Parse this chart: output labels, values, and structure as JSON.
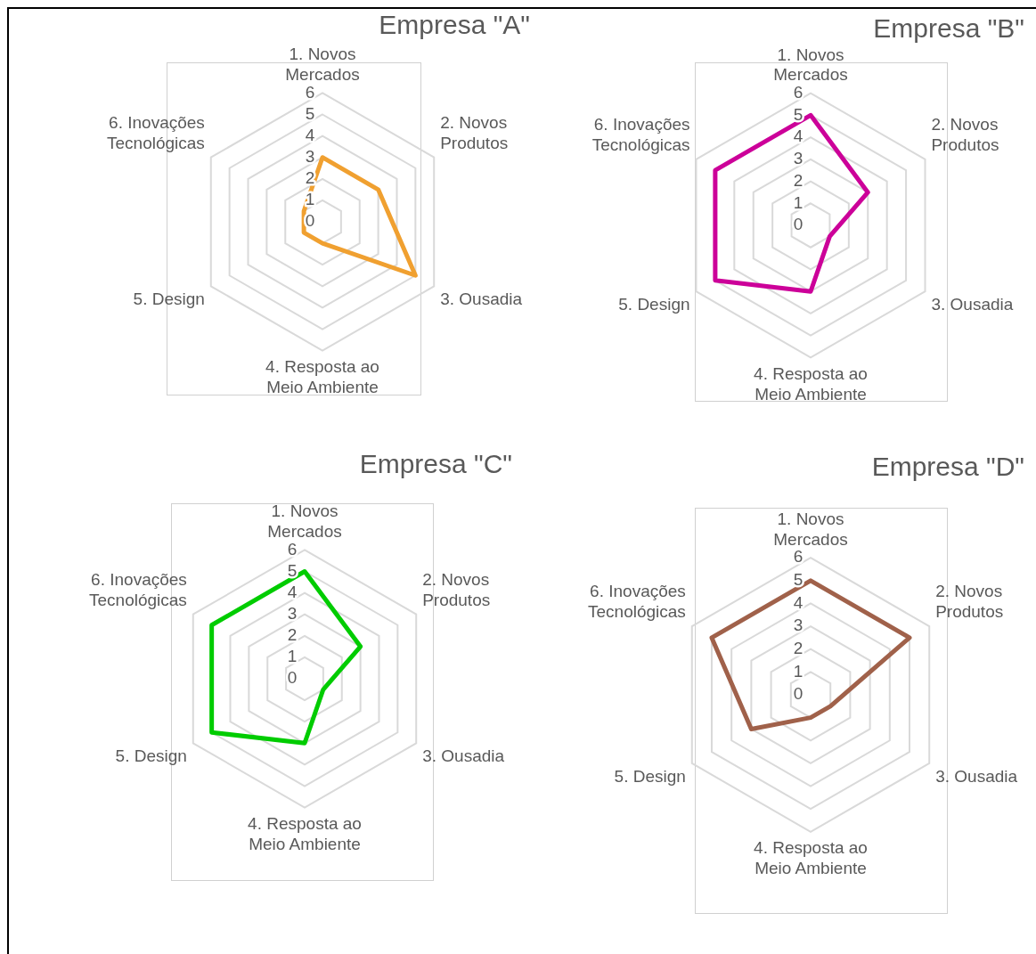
{
  "chart_data": [
    {
      "type": "radar",
      "title": "Empresa \"A\"",
      "categories": [
        "1. Novos\nMercados",
        "2. Novos\nProdutos",
        "3. Ousadia",
        "4. Resposta ao\nMeio Ambiente",
        "5. Design",
        "6. Inovações\nTecnológicas"
      ],
      "series": [
        {
          "color": "#f0a030",
          "values": [
            3,
            3,
            5,
            1,
            1,
            1
          ]
        }
      ],
      "ylim": [
        0,
        6
      ],
      "yticks": [
        0,
        1,
        2,
        3,
        4,
        5,
        6
      ],
      "grid": true,
      "marker": "none"
    },
    {
      "type": "radar",
      "title": "Empresa \"B\"",
      "categories": [
        "1. Novos\nMercados",
        "2. Novos\nProdutos",
        "3. Ousadia",
        "4. Resposta ao\nMeio Ambiente",
        "5. Design",
        "6. Inovações\nTecnológicas"
      ],
      "series": [
        {
          "color": "#cc0099",
          "values": [
            5,
            3,
            1,
            3,
            5,
            5
          ]
        }
      ],
      "ylim": [
        0,
        6
      ],
      "yticks": [
        0,
        1,
        2,
        3,
        4,
        5,
        6
      ],
      "grid": true,
      "marker": "none"
    },
    {
      "type": "radar",
      "title": "Empresa \"C\"",
      "categories": [
        "1. Novos\nMercados",
        "2. Novos\nProdutos",
        "3. Ousadia",
        "4. Resposta ao\nMeio Ambiente",
        "5. Design",
        "6. Inovações\nTecnológicas"
      ],
      "series": [
        {
          "color": "#00cc00",
          "values": [
            5,
            3,
            1,
            3,
            5,
            5
          ]
        }
      ],
      "ylim": [
        0,
        6
      ],
      "yticks": [
        0,
        1,
        2,
        3,
        4,
        5,
        6
      ],
      "grid": true,
      "marker": "none"
    },
    {
      "type": "radar",
      "title": "Empresa \"D\"",
      "categories": [
        "1. Novos\nMercados",
        "2. Novos\nProdutos",
        "3. Ousadia",
        "4. Resposta ao\nMeio Ambiente",
        "5. Design",
        "6. Inovações\nTecnológicas"
      ],
      "series": [
        {
          "color": "#a0614a",
          "values": [
            5,
            5,
            1,
            1,
            3,
            5
          ]
        }
      ],
      "ylim": [
        0,
        6
      ],
      "yticks": [
        0,
        1,
        2,
        3,
        4,
        5,
        6
      ],
      "grid": true,
      "marker": "none"
    }
  ]
}
